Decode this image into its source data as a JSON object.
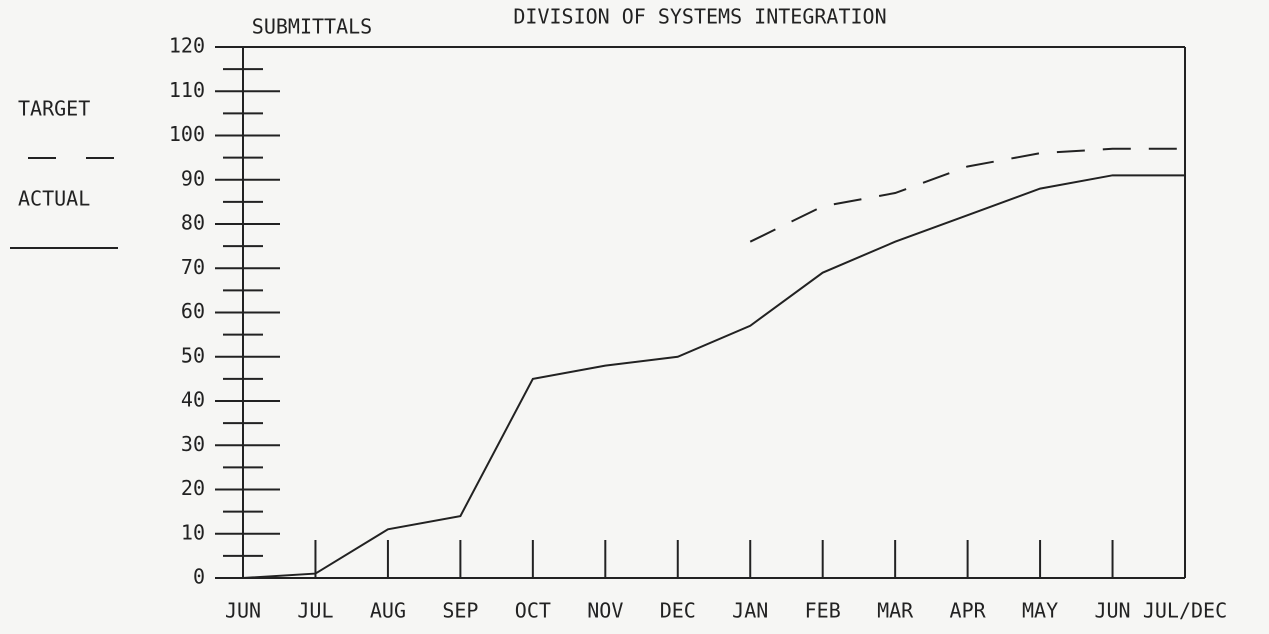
{
  "chart_data": {
    "type": "line",
    "title": "DIVISION OF SYSTEMS INTEGRATION",
    "y_label": "SUBMITTALS",
    "categories": [
      "JUN",
      "JUL",
      "AUG",
      "SEP",
      "OCT",
      "NOV",
      "DEC",
      "JAN",
      "FEB",
      "MAR",
      "APR",
      "MAY",
      "JUN",
      "JUL/DEC"
    ],
    "series": [
      {
        "name": "TARGET",
        "color": "#222222",
        "dash": true,
        "values": [
          null,
          null,
          null,
          null,
          null,
          null,
          null,
          76,
          84,
          87,
          93,
          96,
          97,
          97
        ]
      },
      {
        "name": "ACTUAL",
        "color": "#222222",
        "dash": false,
        "values": [
          0,
          1,
          11,
          14,
          45,
          48,
          50,
          57,
          69,
          76,
          82,
          88,
          91,
          91
        ]
      }
    ],
    "ylim": [
      0,
      120
    ],
    "yticks": [
      0,
      10,
      20,
      30,
      40,
      50,
      60,
      70,
      80,
      90,
      100,
      110,
      120
    ]
  }
}
